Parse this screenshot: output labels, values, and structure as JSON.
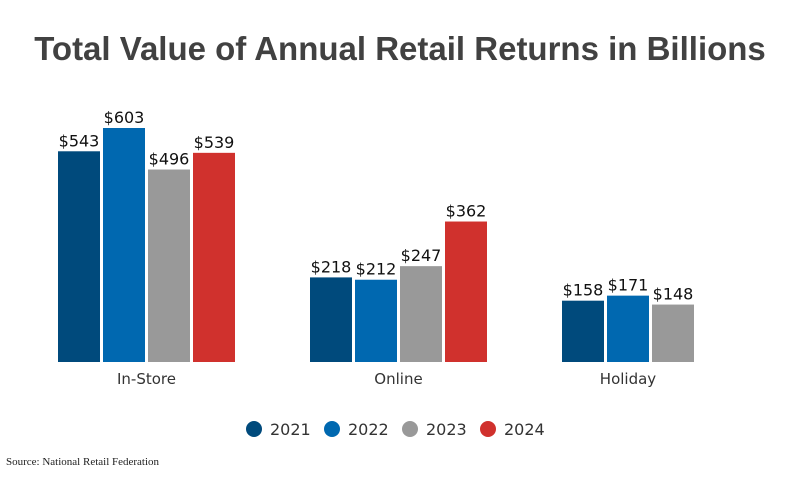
{
  "chart_data": {
    "type": "bar",
    "title": "Total Value of Annual Retail Returns in Billions",
    "categories": [
      "In-Store",
      "Online",
      "Holiday"
    ],
    "series": [
      {
        "name": "2021",
        "color": "#004a7c",
        "values": [
          543,
          218,
          158
        ],
        "labels": [
          "$543",
          "$218",
          "$158"
        ]
      },
      {
        "name": "2022",
        "color": "#0068b0",
        "values": [
          603,
          212,
          171
        ],
        "labels": [
          "$603",
          "$212",
          "$171"
        ]
      },
      {
        "name": "2023",
        "color": "#999999",
        "values": [
          496,
          247,
          148
        ],
        "labels": [
          "$496",
          "$247",
          "$148"
        ]
      },
      {
        "name": "2024",
        "color": "#d0312d",
        "values": [
          539,
          362,
          null
        ],
        "labels": [
          "$539",
          "$362",
          ""
        ]
      }
    ],
    "ylim": [
      0,
      603
    ],
    "legend_position": "bottom",
    "grid": false
  },
  "source": "Source: National Retail Federation"
}
